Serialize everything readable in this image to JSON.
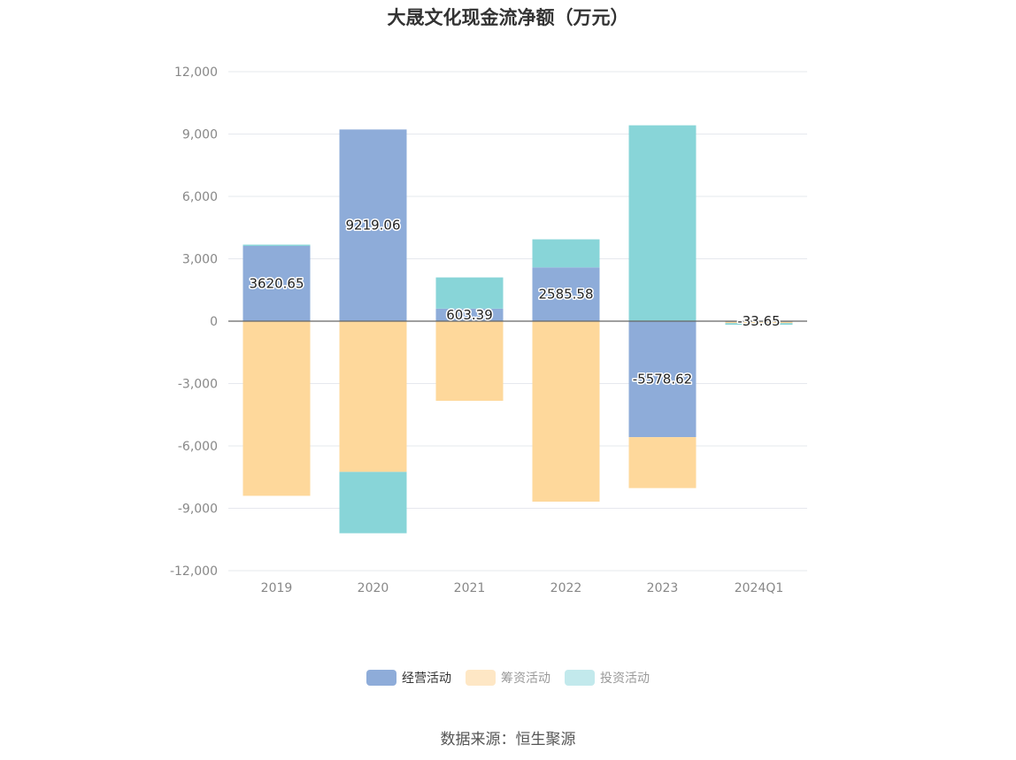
{
  "chart_data": {
    "type": "bar",
    "stacked": true,
    "title": "大晟文化现金流净额（万元）",
    "categories": [
      "2019",
      "2020",
      "2021",
      "2022",
      "2023",
      "2024Q1"
    ],
    "series": [
      {
        "name": "经营活动",
        "color": "#8eacd9",
        "values": [
          3620.65,
          9219.06,
          603.39,
          2585.58,
          -5578.62,
          -33.65
        ]
      },
      {
        "name": "筹资活动",
        "color": "#fed89b",
        "values": [
          -8400,
          -7250,
          -3830,
          -8680,
          -2450,
          -60
        ]
      },
      {
        "name": "投资活动",
        "color": "#88d5d8",
        "values": [
          60,
          -2950,
          1500,
          1350,
          9420,
          -80
        ]
      }
    ],
    "data_labels": [
      "3620.65",
      "9219.06",
      "603.39",
      "2585.58",
      "-5578.62",
      "-33.65"
    ],
    "y_ticks": [
      "12,000",
      "9,000",
      "6,000",
      "3,000",
      "0",
      "-3,000",
      "-6,000",
      "-9,000",
      "-12,000"
    ],
    "ylim": [
      -12000,
      12000
    ],
    "grid": true,
    "legend_position": "bottom"
  },
  "legend": {
    "items": [
      {
        "label": "经营活动",
        "color": "#8eacd9",
        "active": true
      },
      {
        "label": "筹资活动",
        "color": "#fee7c5",
        "active": false
      },
      {
        "label": "投资活动",
        "color": "#c2e9ec",
        "active": false
      }
    ]
  },
  "source": "数据来源：恒生聚源"
}
